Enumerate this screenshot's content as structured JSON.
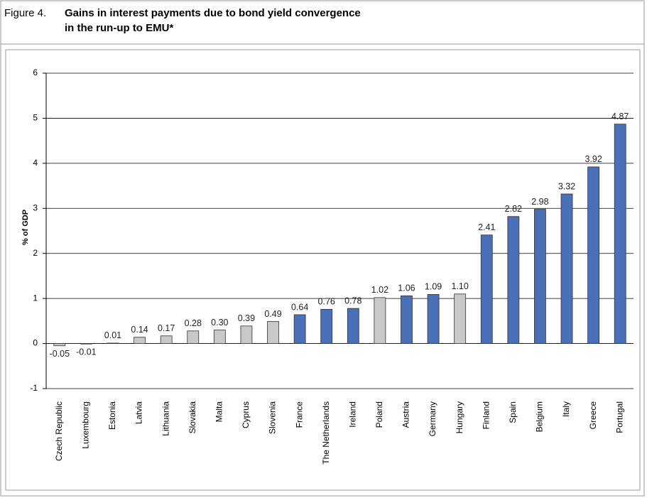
{
  "chart_data": {
    "type": "bar",
    "figure_label": "Figure 4.",
    "title_lines": [
      "Gains in interest payments due to bond yield convergence",
      "in the run-up to EMU*"
    ],
    "y_label": "% of GDP",
    "categories": [
      "Czech Republic",
      "Luxembourg",
      "Estonia",
      "Latvia",
      "Lithuania",
      "Slovakia",
      "Malta",
      "Cyprus",
      "Slovenia",
      "France",
      "The Netherlands",
      "Ireland",
      "Poland",
      "Austria",
      "Germany",
      "Hungary",
      "Finland",
      "Spain",
      "Belgium",
      "Italy",
      "Greece",
      "Portugal"
    ],
    "values": [
      -0.05,
      -0.01,
      0.01,
      0.14,
      0.17,
      0.28,
      0.3,
      0.39,
      0.49,
      0.64,
      0.76,
      0.78,
      1.02,
      1.06,
      1.09,
      1.1,
      2.41,
      2.82,
      2.98,
      3.32,
      3.92,
      4.87
    ],
    "value_labels": [
      "-0.05",
      "-0.01",
      "0.01",
      "0.14",
      "0.17",
      "0.28",
      "0.30",
      "0.39",
      "0.49",
      "0.64",
      "0.76",
      "0.78",
      "1.02",
      "1.06",
      "1.09",
      "1.10",
      "2.41",
      "2.82",
      "2.98",
      "3.32",
      "3.92",
      "4.87"
    ],
    "colors": [
      "#c8c8c8",
      "#c8c8c8",
      "#c8c8c8",
      "#c8c8c8",
      "#c8c8c8",
      "#c8c8c8",
      "#c8c8c8",
      "#c8c8c8",
      "#c8c8c8",
      "#4a70b8",
      "#4a70b8",
      "#4a70b8",
      "#c8c8c8",
      "#4a70b8",
      "#4a70b8",
      "#c8c8c8",
      "#4a70b8",
      "#4a70b8",
      "#4a70b8",
      "#4a70b8",
      "#4a70b8",
      "#4a70b8"
    ],
    "ylim": [
      -1,
      6
    ],
    "yticks": [
      -1,
      0,
      1,
      2,
      3,
      4,
      5,
      6
    ],
    "grid": true
  }
}
